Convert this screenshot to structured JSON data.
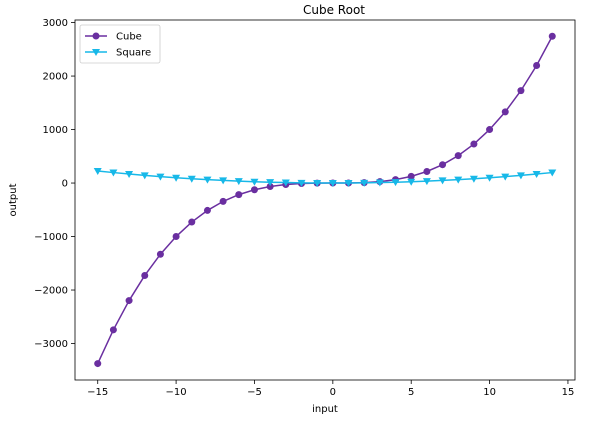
{
  "chart_data": {
    "type": "line",
    "title": "Cube Root",
    "xlabel": "input",
    "ylabel": "output",
    "xlim": [
      -16.45,
      15.45
    ],
    "ylim": [
      -3682,
      3048
    ],
    "xticks": [
      -15,
      -10,
      -5,
      0,
      5,
      10,
      15
    ],
    "yticks": [
      -3000,
      -2000,
      -1000,
      0,
      1000,
      2000,
      3000
    ],
    "xtick_labels": [
      "−15",
      "−10",
      "−5",
      "0",
      "5",
      "10",
      "15"
    ],
    "ytick_labels": [
      "−3000",
      "−2000",
      "−1000",
      "0",
      "1000",
      "2000",
      "3000"
    ],
    "grid": false,
    "legend": "top-left",
    "x": [
      -15,
      -14,
      -13,
      -12,
      -11,
      -10,
      -9,
      -8,
      -7,
      -6,
      -5,
      -4,
      -3,
      -2,
      -1,
      0,
      1,
      2,
      3,
      4,
      5,
      6,
      7,
      8,
      9,
      10,
      11,
      12,
      13,
      14
    ],
    "series": [
      {
        "name": "Cube",
        "color": "#6a2fa0",
        "marker": "circle",
        "values": [
          -3375,
          -2744,
          -2197,
          -1728,
          -1331,
          -1000,
          -729,
          -512,
          -343,
          -216,
          -125,
          -64,
          -27,
          -8,
          -1,
          0,
          1,
          8,
          27,
          64,
          125,
          216,
          343,
          512,
          729,
          1000,
          1331,
          1728,
          2197,
          2744
        ]
      },
      {
        "name": "Square",
        "color": "#17b8e8",
        "marker": "triangle-down",
        "values": [
          225,
          196,
          169,
          144,
          121,
          100,
          81,
          64,
          49,
          36,
          25,
          16,
          9,
          4,
          1,
          0,
          1,
          4,
          9,
          16,
          25,
          36,
          49,
          64,
          81,
          100,
          121,
          144,
          169,
          196
        ]
      }
    ]
  }
}
